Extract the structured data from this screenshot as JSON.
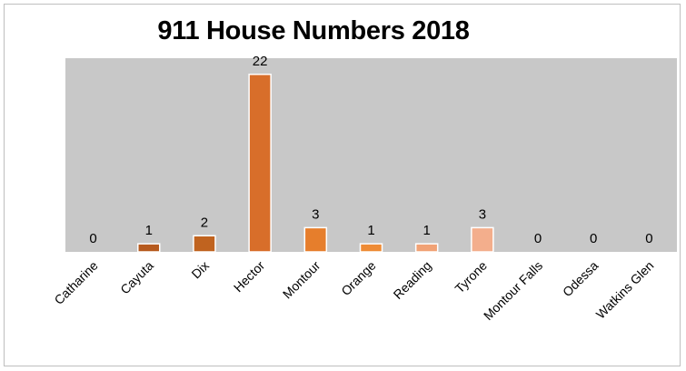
{
  "chart_data": {
    "type": "bar",
    "title": "911 House Numbers 2018",
    "categories": [
      "Catharine",
      "Cayuta",
      "Dix",
      "Hector",
      "Montour",
      "Orange",
      "Reading",
      "Tyrone",
      "Montour Falls",
      "Odessa",
      "Watkins Glen"
    ],
    "values": [
      0,
      1,
      2,
      22,
      3,
      1,
      1,
      3,
      0,
      0,
      0
    ],
    "bar_colors": [
      "#B65A1E",
      "#B65A1E",
      "#C0631F",
      "#D86E2A",
      "#E67E2C",
      "#EE8B35",
      "#F1A275",
      "#F3AE8C",
      "#F3AE8C",
      "#F3AE8C",
      "#F3AE8C"
    ],
    "ylim": [
      0,
      24
    ],
    "xlabel": "",
    "ylabel": "",
    "plot_background": "#C8C8C8",
    "grid": false,
    "legend": "none"
  }
}
